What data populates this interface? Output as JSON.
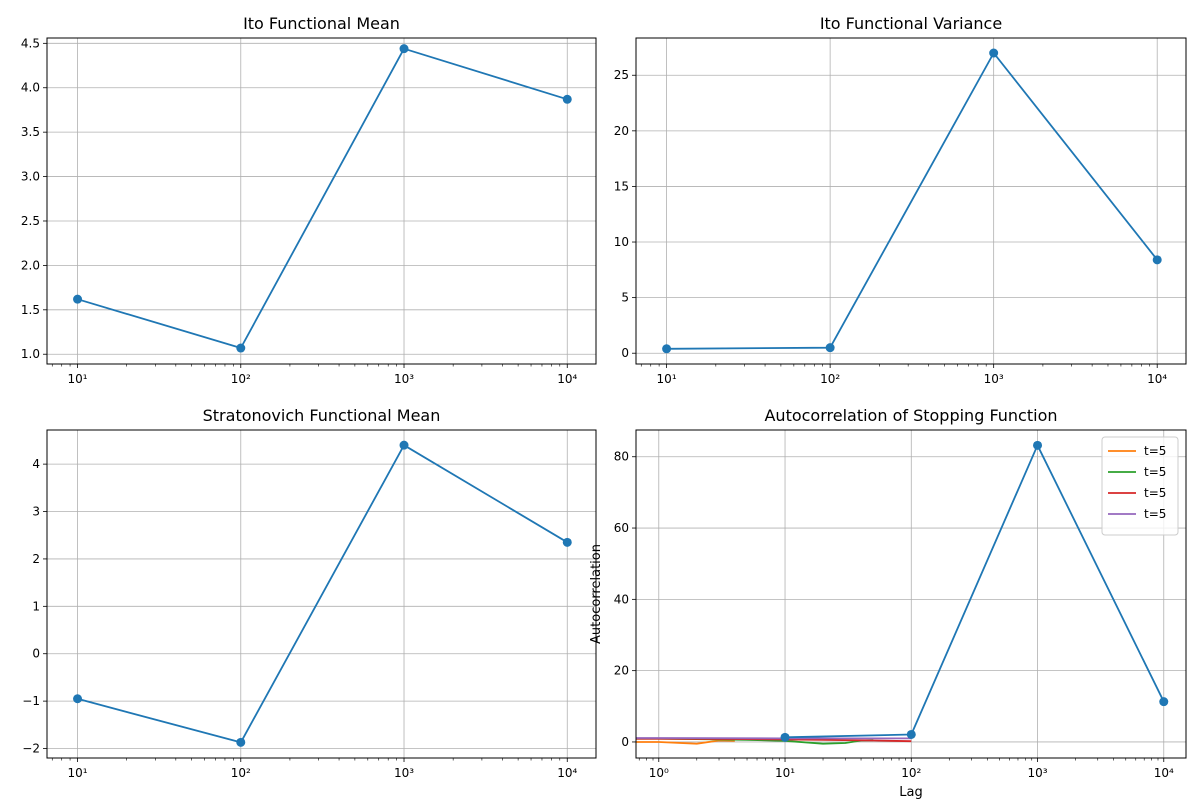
{
  "chart_data": [
    {
      "id": "ax1",
      "type": "line",
      "title": "Ito Functional Mean",
      "xscale": "log",
      "xlim": [
        6.5,
        15000
      ],
      "ylim": [
        0.89,
        4.56
      ],
      "xticks": [
        10,
        100,
        1000,
        10000
      ],
      "xtick_labels": [
        "10¹",
        "10²",
        "10³",
        "10⁴"
      ],
      "yticks": [
        1.0,
        1.5,
        2.0,
        2.5,
        3.0,
        3.5,
        4.0,
        4.5
      ],
      "ytick_labels": [
        "1.0",
        "1.5",
        "2.0",
        "2.5",
        "3.0",
        "3.5",
        "4.0",
        "4.5"
      ],
      "grid": true,
      "series": [
        {
          "color": "#1f77b4",
          "marker": "circle",
          "x": [
            10,
            100,
            1000,
            10000
          ],
          "y": [
            1.62,
            1.07,
            4.44,
            3.87
          ]
        }
      ]
    },
    {
      "id": "ax2",
      "type": "line",
      "title": "Ito Functional Variance",
      "xscale": "log",
      "xlim": [
        6.5,
        15000
      ],
      "ylim": [
        -0.97,
        28.35
      ],
      "xticks": [
        10,
        100,
        1000,
        10000
      ],
      "xtick_labels": [
        "10¹",
        "10²",
        "10³",
        "10⁴"
      ],
      "yticks": [
        0,
        5,
        10,
        15,
        20,
        25
      ],
      "ytick_labels": [
        "0",
        "5",
        "10",
        "15",
        "20",
        "25"
      ],
      "grid": true,
      "series": [
        {
          "color": "#1f77b4",
          "marker": "circle",
          "x": [
            10,
            100,
            1000,
            10000
          ],
          "y": [
            0.4,
            0.5,
            27.0,
            8.4
          ]
        }
      ]
    },
    {
      "id": "ax3",
      "type": "line",
      "title": "Stratonovich Functional Mean",
      "xscale": "log",
      "xlim": [
        6.5,
        15000
      ],
      "ylim": [
        -2.2,
        4.72
      ],
      "xticks": [
        10,
        100,
        1000,
        10000
      ],
      "xtick_labels": [
        "10¹",
        "10²",
        "10³",
        "10⁴"
      ],
      "yticks": [
        -2,
        -1,
        0,
        1,
        2,
        3,
        4
      ],
      "ytick_labels": [
        "−2",
        "−1",
        "0",
        "1",
        "2",
        "3",
        "4"
      ],
      "grid": true,
      "series": [
        {
          "color": "#1f77b4",
          "marker": "circle",
          "x": [
            10,
            100,
            1000,
            10000
          ],
          "y": [
            -0.95,
            -1.87,
            4.4,
            2.35
          ]
        }
      ]
    },
    {
      "id": "ax4",
      "type": "line",
      "title": "Autocorrelation of Stopping Function",
      "xlabel": "Lag",
      "ylabel": "Autocorrelation",
      "xscale": "log",
      "xlim": [
        0.66,
        15000
      ],
      "ylim": [
        -4.5,
        87.5
      ],
      "xticks": [
        1,
        10,
        100,
        1000,
        10000
      ],
      "xtick_labels": [
        "10⁰",
        "10¹",
        "10²",
        "10³",
        "10⁴"
      ],
      "yticks": [
        0,
        20,
        40,
        60,
        80
      ],
      "ytick_labels": [
        "0",
        "20",
        "40",
        "60",
        "80"
      ],
      "grid": true,
      "legend": "top-right",
      "series": [
        {
          "color": "#1f77b4",
          "marker": "circle",
          "x": [
            10,
            100,
            1000,
            10000
          ],
          "y": [
            1.3,
            2.1,
            83.2,
            11.3
          ]
        },
        {
          "name": "t=5",
          "color": "#ff7f0e",
          "x": [
            0.66,
            1,
            2,
            3,
            4
          ],
          "y": [
            0.0,
            0.0,
            -0.5,
            0.4,
            0.3
          ]
        },
        {
          "name": "t=5",
          "color": "#2ca02c",
          "x": [
            0.66,
            1,
            2,
            5,
            10,
            20,
            30,
            40,
            50
          ],
          "y": [
            0.9,
            0.9,
            0.8,
            0.6,
            0.3,
            -0.5,
            -0.3,
            0.4,
            0.5
          ]
        },
        {
          "name": "t=5",
          "color": "#d62728",
          "x": [
            0.66,
            1,
            5,
            10,
            20,
            50,
            100
          ],
          "y": [
            0.9,
            0.9,
            0.8,
            0.7,
            0.6,
            0.4,
            0.2
          ]
        },
        {
          "name": "t=5",
          "color": "#9467bd",
          "x": [
            0.66,
            1,
            10,
            100
          ],
          "y": [
            1.1,
            1.1,
            1.0,
            1.0
          ]
        }
      ]
    }
  ]
}
